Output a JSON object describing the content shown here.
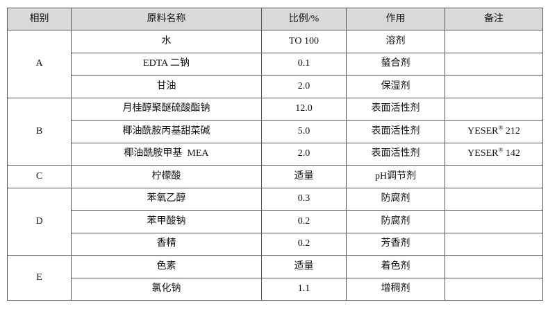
{
  "table": {
    "headers": [
      "相别",
      "原料名称",
      "比例/%",
      "作用",
      "备注"
    ],
    "groups": [
      {
        "phase": "A",
        "rows": [
          {
            "name": "水",
            "ratio": "TO 100",
            "role": "溶剂",
            "note": ""
          },
          {
            "name": "EDTA 二钠",
            "ratio": "0.1",
            "role": "螯合剂",
            "note": ""
          },
          {
            "name": "甘油",
            "ratio": "2.0",
            "role": "保湿剂",
            "note": ""
          }
        ]
      },
      {
        "phase": "B",
        "rows": [
          {
            "name": "月桂醇聚醚硫酸酯钠",
            "ratio": "12.0",
            "role": "表面活性剂",
            "note": ""
          },
          {
            "name": "椰油酰胺丙基甜菜碱",
            "ratio": "5.0",
            "role": "表面活性剂",
            "note_brand": "YESER",
            "note_mark": "®",
            "note_num": " 212"
          },
          {
            "name": "椰油酰胺甲基  MEA",
            "ratio": "2.0",
            "role": "表面活性剂",
            "note_brand": "YESER",
            "note_mark": "®",
            "note_num": " 142"
          }
        ]
      },
      {
        "phase": "C",
        "rows": [
          {
            "name": "柠檬酸",
            "ratio": "适量",
            "role": "pH调节剂",
            "note": ""
          }
        ]
      },
      {
        "phase": "D",
        "rows": [
          {
            "name": "苯氧乙醇",
            "ratio": "0.3",
            "role": "防腐剂",
            "note": ""
          },
          {
            "name": "苯甲酸钠",
            "ratio": "0.2",
            "role": "防腐剂",
            "note": ""
          },
          {
            "name": "香精",
            "ratio": "0.2",
            "role": "芳香剂",
            "note": ""
          }
        ]
      },
      {
        "phase": "E",
        "rows": [
          {
            "name": "色素",
            "ratio": "适量",
            "role": "着色剂",
            "note": ""
          },
          {
            "name": "氯化钠",
            "ratio": "1.1",
            "role": "增稠剂",
            "note": ""
          }
        ]
      }
    ]
  }
}
